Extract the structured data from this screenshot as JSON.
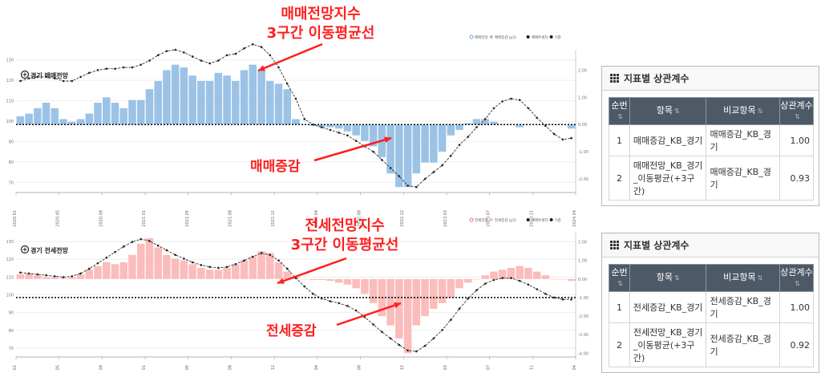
{
  "legend_top": [
    "매매전망",
    "매매증감 (y2)",
    "매매추세치",
    "기준"
  ],
  "legend_bottom": [
    "전세전망",
    "전세증감 (y2)",
    "매매추세치",
    "기준"
  ],
  "x_ticks": [
    "2020.01",
    "2020.05",
    "2020.09",
    "2021.01",
    "2021.05",
    "2021.08",
    "2021.12",
    "2022.04",
    "2022.08",
    "2022.12",
    "2023.03",
    "2023.07",
    "2023.11",
    "2024.04"
  ],
  "annotations": {
    "top_title_line1": "매매전망지수",
    "top_title_line2": "3구간 이동평균선",
    "top_bar_label": "매매증감",
    "bottom_title_line1": "전세전망지수",
    "bottom_title_line2": "3구간 이동평균선",
    "bottom_bar_label": "전세증감"
  },
  "colors": {
    "sale_bar": "#9cc3e6",
    "jeonse_bar": "#fbbcbc",
    "annotation": "#ff1f1f",
    "line": "#333333"
  },
  "chart_data": [
    {
      "type": "bar",
      "title": "경기 매매전망",
      "ylim": [
        65,
        135
      ],
      "y_ticks": [
        130,
        120,
        110,
        100,
        90,
        80,
        70
      ],
      "y2lim": [
        -2.5,
        2.75
      ],
      "y2_ticks": [
        "2.00",
        "1.00",
        "0.00",
        "-1.00",
        "-2.00"
      ],
      "reference_y2": 0,
      "series": [
        {
          "name": "매매증감 (y2)",
          "axis": "y2",
          "values": [
            0.3,
            0.4,
            0.6,
            0.8,
            0.6,
            0.2,
            0.1,
            0.2,
            0.4,
            0.8,
            1.0,
            0.8,
            0.6,
            0.9,
            0.9,
            1.3,
            1.6,
            2.0,
            2.2,
            2.1,
            1.8,
            1.6,
            1.6,
            1.9,
            1.8,
            1.6,
            2.0,
            2.2,
            2.0,
            1.6,
            1.5,
            1.3,
            0.2,
            0.0,
            -0.05,
            -0.1,
            -0.1,
            -0.15,
            -0.25,
            -0.4,
            -0.6,
            -0.8,
            -1.2,
            -1.8,
            -2.3,
            -2.3,
            -1.8,
            -1.4,
            -1.4,
            -1.0,
            -0.4,
            -0.2,
            0.05,
            0.2,
            0.2,
            0.1,
            0.0,
            0.0,
            -0.1,
            0.0,
            0.0,
            0.0,
            0.0,
            0.0,
            -0.15
          ]
        },
        {
          "name": "매매추세치",
          "axis": "y2",
          "values": [
            1.6,
            1.7,
            1.75,
            1.75,
            1.7,
            1.6,
            1.6,
            1.75,
            1.9,
            2.0,
            2.05,
            2.05,
            2.1,
            2.1,
            2.2,
            2.35,
            2.55,
            2.7,
            2.75,
            2.65,
            2.5,
            2.35,
            2.25,
            2.35,
            2.55,
            2.6,
            2.8,
            2.95,
            2.85,
            2.55,
            2.1,
            1.5,
            0.95,
            0.2,
            0.0,
            -0.1,
            -0.2,
            -0.3,
            -0.4,
            -0.6,
            -0.8,
            -1.0,
            -1.3,
            -1.6,
            -1.9,
            -2.25,
            -2.3,
            -2.0,
            -1.75,
            -1.5,
            -1.15,
            -0.75,
            -0.45,
            -0.1,
            0.2,
            0.6,
            0.85,
            0.95,
            0.9,
            0.6,
            0.25,
            -0.05,
            -0.35,
            -0.55,
            -0.5
          ]
        }
      ]
    },
    {
      "type": "bar",
      "title": "경기 전세전망",
      "ylim": [
        65,
        135
      ],
      "y_ticks": [
        130,
        120,
        110,
        100,
        90,
        80,
        70
      ],
      "y2lim": [
        -4.2,
        2.5
      ],
      "y2_ticks": [
        "2.00",
        "1.00",
        "0.00",
        "-1.00",
        "-2.00",
        "-3.00",
        "-4.00"
      ],
      "reference_y2": -1.0,
      "series": [
        {
          "name": "전세증감 (y2)",
          "axis": "y2",
          "values": [
            0.25,
            0.3,
            0.2,
            0.1,
            0.1,
            0.05,
            0.1,
            0.25,
            0.5,
            0.7,
            0.9,
            0.8,
            0.9,
            1.3,
            1.9,
            2.2,
            1.7,
            1.3,
            1.1,
            1.0,
            0.8,
            0.6,
            0.5,
            0.5,
            0.6,
            0.8,
            1.0,
            1.2,
            1.5,
            1.4,
            0.9,
            0.4,
            0.1,
            0.0,
            -0.05,
            -0.05,
            -0.1,
            -0.2,
            -0.3,
            -0.5,
            -0.8,
            -1.3,
            -2.0,
            -2.5,
            -3.2,
            -4.0,
            -2.5,
            -2.0,
            -1.6,
            -1.3,
            -1.0,
            -0.5,
            -0.2,
            0.0,
            0.2,
            0.4,
            0.5,
            0.6,
            0.7,
            0.6,
            0.4,
            0.2,
            0.0,
            0.0,
            -0.1
          ]
        },
        {
          "name": "매매추세치",
          "axis": "y2",
          "values": [
            0.35,
            0.3,
            0.25,
            0.2,
            0.15,
            0.1,
            0.15,
            0.3,
            0.55,
            0.85,
            1.15,
            1.45,
            1.75,
            2.0,
            2.15,
            2.05,
            1.8,
            1.55,
            1.3,
            1.1,
            0.9,
            0.75,
            0.65,
            0.6,
            0.65,
            0.8,
            1.0,
            1.2,
            1.4,
            1.3,
            1.0,
            0.55,
            0.05,
            -0.4,
            -0.8,
            -1.05,
            -1.2,
            -1.3,
            -1.45,
            -1.7,
            -2.05,
            -2.45,
            -2.85,
            -3.2,
            -3.55,
            -3.85,
            -3.9,
            -3.6,
            -3.2,
            -2.75,
            -2.2,
            -1.6,
            -1.05,
            -0.6,
            -0.25,
            -0.05,
            0.05,
            0.05,
            -0.1,
            -0.3,
            -0.55,
            -0.8,
            -1.0,
            -1.1,
            -1.1
          ]
        }
      ]
    }
  ],
  "tables": [
    {
      "title": "지표별 상관계수",
      "headers": [
        "순번",
        "항목",
        "비교항목",
        "상관계수"
      ],
      "rows": [
        [
          "1",
          "매매증감_KB_경기",
          "매매증감_KB_경기",
          "1.00"
        ],
        [
          "2",
          "매매전망_KB_경기_이동평균(+3구간)",
          "매매증감_KB_경기",
          "0.93"
        ]
      ]
    },
    {
      "title": "지표별 상관계수",
      "headers": [
        "순번",
        "항목",
        "비교항목",
        "상관계수"
      ],
      "rows": [
        [
          "1",
          "전세증감_KB_경기",
          "전세증감_KB_경기",
          "1.00"
        ],
        [
          "2",
          "전세전망_KB_경기_이동평균(+3구간)",
          "전세증감_KB_경기",
          "0.92"
        ]
      ]
    }
  ]
}
